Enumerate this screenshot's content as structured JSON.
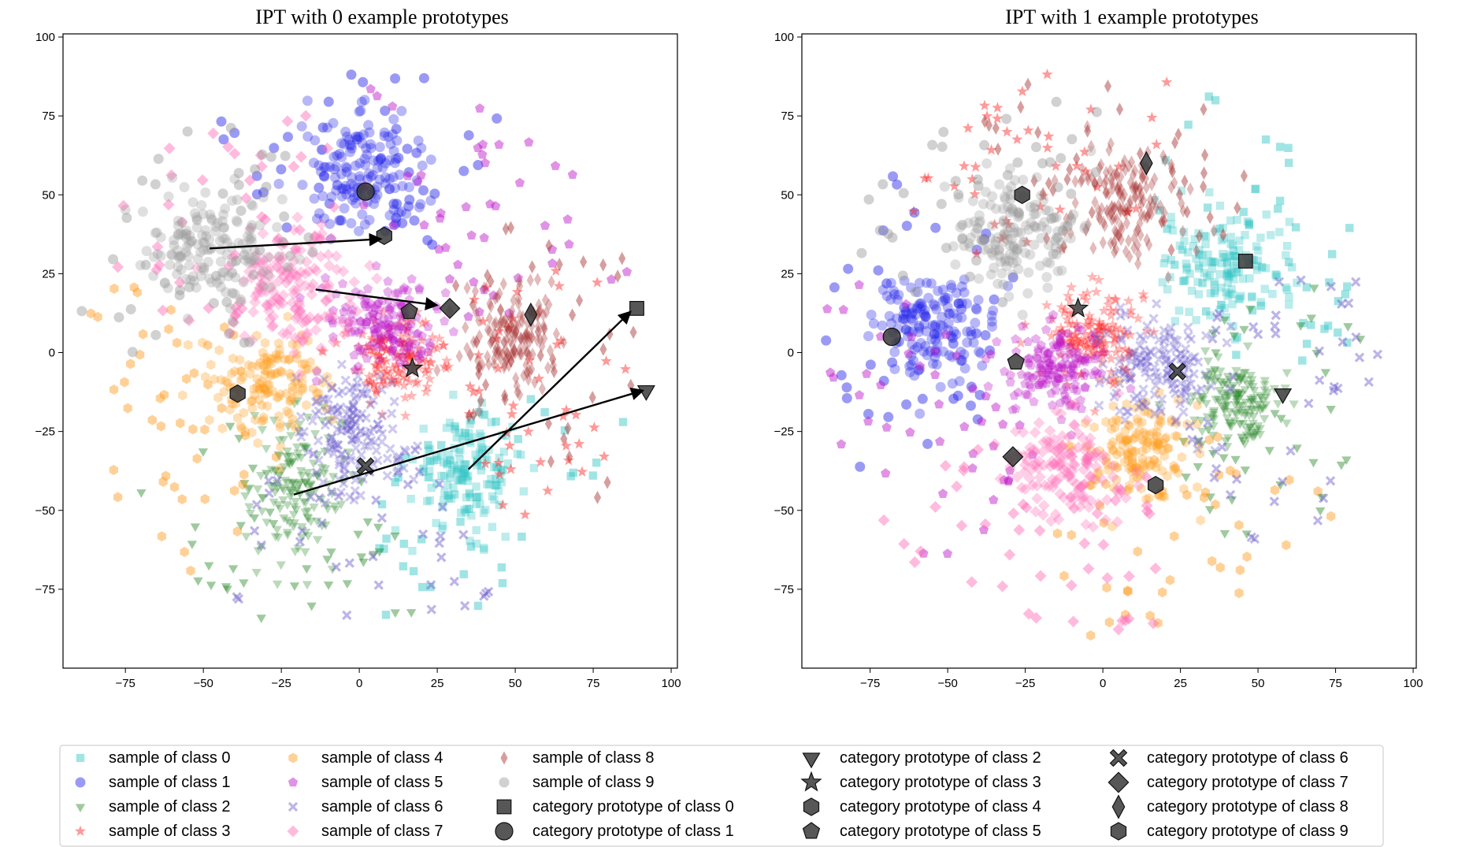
{
  "chart_data": [
    {
      "type": "scatter",
      "title": "IPT with 0 example prototypes",
      "xlabel": "",
      "ylabel": "",
      "xlim": [
        -95,
        102
      ],
      "ylim": [
        -100,
        101
      ],
      "xticks": [
        -75,
        -50,
        -25,
        0,
        25,
        50,
        75,
        100
      ],
      "yticks": [
        100,
        75,
        50,
        25,
        0,
        -25,
        -50,
        -75
      ],
      "xtick_labels": [
        "−75",
        "−50",
        "−25",
        "0",
        "25",
        "50",
        "75",
        "100"
      ],
      "ytick_labels": [
        "100",
        "75",
        "50",
        "25",
        "0",
        "−25",
        "−50",
        "−75"
      ],
      "clusters": [
        {
          "class": 0,
          "center": [
            35,
            -38
          ],
          "spread": [
            9,
            9
          ]
        },
        {
          "class": 1,
          "center": [
            0,
            58
          ],
          "spread": [
            9,
            10
          ]
        },
        {
          "class": 2,
          "center": [
            -20,
            -42
          ],
          "spread": [
            7,
            12
          ]
        },
        {
          "class": 3,
          "center": [
            12,
            -2
          ],
          "spread": [
            8,
            7
          ]
        },
        {
          "class": 4,
          "center": [
            -28,
            -10
          ],
          "spread": [
            9,
            8
          ]
        },
        {
          "class": 5,
          "center": [
            8,
            10
          ],
          "spread": [
            9,
            7
          ]
        },
        {
          "class": 6,
          "center": [
            -2,
            -25
          ],
          "spread": [
            8,
            10
          ]
        },
        {
          "class": 7,
          "center": [
            -20,
            20
          ],
          "spread": [
            10,
            10
          ]
        },
        {
          "class": 8,
          "center": [
            50,
            5
          ],
          "spread": [
            8,
            9
          ]
        },
        {
          "class": 9,
          "center": [
            -48,
            33
          ],
          "spread": [
            10,
            9
          ]
        }
      ],
      "prototypes": [
        {
          "class": 0,
          "x": 89,
          "y": 14
        },
        {
          "class": 1,
          "x": 2,
          "y": 51
        },
        {
          "class": 2,
          "x": 92,
          "y": -12
        },
        {
          "class": 3,
          "x": 17,
          "y": -5
        },
        {
          "class": 4,
          "x": -39,
          "y": -13
        },
        {
          "class": 5,
          "x": 16,
          "y": 13
        },
        {
          "class": 6,
          "x": 2,
          "y": -36
        },
        {
          "class": 7,
          "x": 29,
          "y": 14
        },
        {
          "class": 8,
          "x": 55,
          "y": 12
        },
        {
          "class": 9,
          "x": 8,
          "y": 37
        }
      ],
      "arrows": [
        {
          "from": [
            -48,
            33
          ],
          "to": [
            7,
            36
          ]
        },
        {
          "from": [
            -14,
            20
          ],
          "to": [
            25,
            15
          ]
        },
        {
          "from": [
            35,
            -37
          ],
          "to": [
            87,
            13
          ]
        },
        {
          "from": [
            -21,
            -45
          ],
          "to": [
            91,
            -12
          ]
        }
      ]
    },
    {
      "type": "scatter",
      "title": "IPT with 1 example prototypes",
      "xlabel": "",
      "ylabel": "",
      "xlim": [
        -97,
        101
      ],
      "ylim": [
        -100,
        101
      ],
      "xticks": [
        -75,
        -50,
        -25,
        0,
        25,
        50,
        75,
        100
      ],
      "yticks": [
        100,
        75,
        50,
        25,
        0,
        -25,
        -50,
        -75
      ],
      "xtick_labels": [
        "−75",
        "−50",
        "−25",
        "0",
        "25",
        "50",
        "75",
        "100"
      ],
      "ytick_labels": [
        "100",
        "75",
        "50",
        "25",
        "0",
        "−25",
        "−50",
        "−75"
      ],
      "clusters": [
        {
          "class": 0,
          "center": [
            40,
            28
          ],
          "spread": [
            10,
            9
          ]
        },
        {
          "class": 1,
          "center": [
            -55,
            8
          ],
          "spread": [
            9,
            8
          ]
        },
        {
          "class": 2,
          "center": [
            43,
            -15
          ],
          "spread": [
            8,
            7
          ]
        },
        {
          "class": 3,
          "center": [
            -2,
            5
          ],
          "spread": [
            7,
            7
          ]
        },
        {
          "class": 4,
          "center": [
            12,
            -30
          ],
          "spread": [
            8,
            8
          ]
        },
        {
          "class": 5,
          "center": [
            -15,
            -5
          ],
          "spread": [
            8,
            7
          ]
        },
        {
          "class": 6,
          "center": [
            18,
            -5
          ],
          "spread": [
            9,
            8
          ]
        },
        {
          "class": 7,
          "center": [
            -12,
            -38
          ],
          "spread": [
            10,
            9
          ]
        },
        {
          "class": 8,
          "center": [
            8,
            48
          ],
          "spread": [
            8,
            9
          ]
        },
        {
          "class": 9,
          "center": [
            -28,
            38
          ],
          "spread": [
            10,
            9
          ]
        }
      ],
      "prototypes": [
        {
          "class": 0,
          "x": 46,
          "y": 29
        },
        {
          "class": 1,
          "x": -68,
          "y": 5
        },
        {
          "class": 2,
          "x": 58,
          "y": -13
        },
        {
          "class": 3,
          "x": -8,
          "y": 14
        },
        {
          "class": 4,
          "x": 17,
          "y": -42
        },
        {
          "class": 5,
          "x": -28,
          "y": -3
        },
        {
          "class": 6,
          "x": 24,
          "y": -6
        },
        {
          "class": 7,
          "x": -29,
          "y": -33
        },
        {
          "class": 8,
          "x": 14,
          "y": 60
        },
        {
          "class": 9,
          "x": -26,
          "y": 50
        }
      ],
      "arrows": []
    }
  ],
  "classes": [
    {
      "id": 0,
      "color": "#2ec4c4",
      "sample_marker": "square"
    },
    {
      "id": 1,
      "color": "#2020e8",
      "sample_marker": "circle"
    },
    {
      "id": 2,
      "color": "#2a8a2a",
      "sample_marker": "triangle-down"
    },
    {
      "id": 3,
      "color": "#ff2020",
      "sample_marker": "star"
    },
    {
      "id": 4,
      "color": "#ff9a1a",
      "sample_marker": "hexagon"
    },
    {
      "id": 5,
      "color": "#bb10c8",
      "sample_marker": "pentagon"
    },
    {
      "id": 6,
      "color": "#6a5acd",
      "sample_marker": "x-cross"
    },
    {
      "id": 7,
      "color": "#ff69b4",
      "sample_marker": "diamond"
    },
    {
      "id": 8,
      "color": "#a52a2a",
      "sample_marker": "thin-diamond"
    },
    {
      "id": 9,
      "color": "#9a9a9a",
      "sample_marker": "circle"
    }
  ],
  "prototype_color": "#3a3a3a",
  "legend": {
    "placement": "bottom",
    "entries": [
      {
        "label": "sample of class 0",
        "marker": "square",
        "color": "#2ec4c4",
        "kind": "sample"
      },
      {
        "label": "sample of class 1",
        "marker": "circle",
        "color": "#2020e8",
        "kind": "sample"
      },
      {
        "label": "sample of class 2",
        "marker": "triangle-down",
        "color": "#2a8a2a",
        "kind": "sample"
      },
      {
        "label": "sample of class 3",
        "marker": "star",
        "color": "#ff2020",
        "kind": "sample"
      },
      {
        "label": "sample of class 4",
        "marker": "hexagon",
        "color": "#ff9a1a",
        "kind": "sample"
      },
      {
        "label": "sample of class 5",
        "marker": "pentagon",
        "color": "#bb10c8",
        "kind": "sample"
      },
      {
        "label": "sample of class 6",
        "marker": "x-cross",
        "color": "#6a5acd",
        "kind": "sample"
      },
      {
        "label": "sample of class 7",
        "marker": "diamond",
        "color": "#ff69b4",
        "kind": "sample"
      },
      {
        "label": "sample of class 8",
        "marker": "thin-diamond",
        "color": "#a52a2a",
        "kind": "sample"
      },
      {
        "label": "sample of class 9",
        "marker": "circle",
        "color": "#9a9a9a",
        "kind": "sample"
      },
      {
        "label": "category prototype of class 0",
        "marker": "square",
        "color": "#3a3a3a",
        "kind": "prototype"
      },
      {
        "label": "category prototype of class 1",
        "marker": "circle",
        "color": "#3a3a3a",
        "kind": "prototype"
      },
      {
        "label": "category prototype of class 2",
        "marker": "triangle-down",
        "color": "#3a3a3a",
        "kind": "prototype"
      },
      {
        "label": "category prototype of class 3",
        "marker": "star",
        "color": "#3a3a3a",
        "kind": "prototype"
      },
      {
        "label": "category prototype of class 4",
        "marker": "hexagon",
        "color": "#3a3a3a",
        "kind": "prototype"
      },
      {
        "label": "category prototype of class 5",
        "marker": "pentagon",
        "color": "#3a3a3a",
        "kind": "prototype"
      },
      {
        "label": "category prototype of class 6",
        "marker": "x-cross",
        "color": "#3a3a3a",
        "kind": "prototype"
      },
      {
        "label": "category prototype of class 7",
        "marker": "diamond",
        "color": "#3a3a3a",
        "kind": "prototype"
      },
      {
        "label": "category prototype of class 8",
        "marker": "thin-diamond",
        "color": "#3a3a3a",
        "kind": "prototype"
      },
      {
        "label": "category prototype of class 9",
        "marker": "hexagon",
        "color": "#3a3a3a",
        "kind": "prototype"
      }
    ]
  }
}
